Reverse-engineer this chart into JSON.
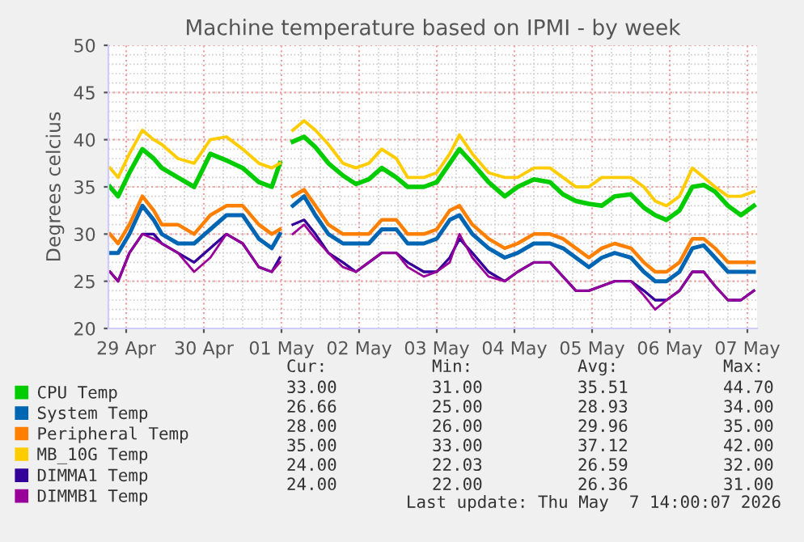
{
  "chart_data": {
    "type": "line",
    "title": "Machine temperature based on IPMI - by week",
    "ylabel": "Degrees celcius",
    "x": [
      "2026-04-28T19:00",
      "2026-04-28T21:30",
      "2026-04-29T01:00",
      "2026-04-29T05:00",
      "2026-04-29T08:30",
      "2026-04-29T11:00",
      "2026-04-29T16:00",
      "2026-04-29T21:00",
      "2026-04-30T02:00",
      "2026-04-30T07:00",
      "2026-04-30T12:00",
      "2026-04-30T17:00",
      "2026-04-30T21:00",
      "2026-04-30T23:30",
      "2026-05-01T01:30",
      "2026-05-01T03:30",
      "2026-05-01T07:00",
      "2026-05-01T10:30",
      "2026-05-01T14:30",
      "2026-05-01T19:00",
      "2026-05-01T23:00",
      "2026-05-02T03:00",
      "2026-05-02T07:00",
      "2026-05-02T11:30",
      "2026-05-02T15:00",
      "2026-05-02T20:00",
      "2026-05-03T00:00",
      "2026-05-03T04:00",
      "2026-05-03T07:00",
      "2026-05-03T11:00",
      "2026-05-03T16:00",
      "2026-05-03T21:00",
      "2026-05-04T01:00",
      "2026-05-04T06:00",
      "2026-05-04T11:00",
      "2026-05-04T15:00",
      "2026-05-04T19:00",
      "2026-05-04T23:00",
      "2026-05-05T03:00",
      "2026-05-05T07:00",
      "2026-05-05T12:00",
      "2026-05-05T16:00",
      "2026-05-05T19:30",
      "2026-05-05T23:00",
      "2026-05-06T03:00",
      "2026-05-06T07:00",
      "2026-05-06T10:30",
      "2026-05-06T14:00",
      "2026-05-06T18:00",
      "2026-05-06T22:00",
      "2026-05-07T02:00"
    ],
    "series": [
      {
        "name": "CPU Temp",
        "color": "#00cc00",
        "values": [
          35,
          34,
          36.5,
          39,
          38,
          37,
          36,
          35,
          38.5,
          37.8,
          37,
          35.5,
          35,
          37.5,
          null,
          39.8,
          40.3,
          39.2,
          37.5,
          36.2,
          35.3,
          35.8,
          37,
          36,
          35,
          35,
          35.5,
          37.5,
          39,
          37.5,
          35.5,
          34,
          35,
          35.8,
          35.5,
          34.2,
          33.5,
          33.2,
          33,
          34,
          34.2,
          32.8,
          32,
          31.5,
          32.5,
          35,
          35.2,
          34.5,
          33,
          32,
          33
        ]
      },
      {
        "name": "System Temp",
        "color": "#0066b3",
        "values": [
          28,
          28,
          30,
          33,
          31.5,
          30,
          29,
          29,
          30.5,
          32,
          32,
          29.5,
          28.5,
          30,
          null,
          33,
          34,
          32,
          30,
          29,
          29,
          29,
          30.5,
          30.5,
          29,
          29,
          29.5,
          31.5,
          32,
          30,
          28.5,
          27.5,
          28,
          29,
          29,
          28.5,
          27.5,
          26.5,
          27.5,
          28,
          27.5,
          26,
          25,
          25,
          26,
          28.5,
          28.8,
          27.5,
          26,
          26,
          26
        ]
      },
      {
        "name": "Peripheral Temp",
        "color": "#ff8000",
        "values": [
          30,
          29,
          31,
          34,
          32.5,
          31,
          31,
          30,
          32,
          33,
          33,
          31,
          30,
          30.5,
          null,
          34,
          34.7,
          33,
          31,
          30,
          30,
          30,
          31.5,
          31.5,
          30,
          30,
          30.5,
          32.5,
          33,
          31,
          29.5,
          28.5,
          29,
          30,
          30,
          29.5,
          28.5,
          27.5,
          28.5,
          29,
          28.5,
          27,
          26,
          26,
          27,
          29.5,
          29.5,
          28.5,
          27,
          27,
          27
        ]
      },
      {
        "name": "MB_10G Temp",
        "color": "#ffcc00",
        "values": [
          37,
          36,
          38.5,
          41,
          40,
          39.5,
          38,
          37.5,
          40,
          40.3,
          39,
          37.5,
          37,
          37.5,
          null,
          41,
          42,
          41,
          39.5,
          37.5,
          37,
          37.5,
          39,
          38,
          36,
          36,
          36.5,
          38.5,
          40.5,
          38.5,
          36.5,
          36,
          36,
          37,
          37,
          36,
          35,
          35,
          36,
          36,
          36,
          35,
          33.5,
          33,
          34,
          37,
          36,
          35,
          34,
          34,
          34.5
        ]
      },
      {
        "name": "DIMMA1 Temp",
        "color": "#330099",
        "values": [
          26,
          25,
          28,
          30,
          30,
          29,
          28,
          27,
          28.5,
          30,
          29,
          26.5,
          26,
          27.5,
          null,
          31,
          31.5,
          30,
          28,
          27,
          26,
          27,
          28,
          28,
          27,
          26,
          26,
          27.5,
          29.5,
          28,
          26,
          25,
          26,
          27,
          27,
          25.5,
          24,
          24,
          24.5,
          25,
          25,
          24,
          23,
          23,
          24,
          26,
          26,
          24.5,
          23,
          23,
          24
        ]
      },
      {
        "name": "DIMMB1 Temp",
        "color": "#990099",
        "values": [
          26,
          25,
          28,
          30,
          29.5,
          29,
          28,
          26,
          27.5,
          30,
          29,
          26.5,
          26,
          27,
          null,
          30,
          31,
          29.5,
          28,
          26.5,
          26,
          27,
          28,
          28,
          26.5,
          25.5,
          26,
          27,
          30,
          27.5,
          25.5,
          25,
          26,
          27,
          27,
          25.5,
          24,
          24,
          24.5,
          25,
          25,
          23.5,
          22,
          23,
          24,
          26,
          26,
          24.5,
          23,
          23,
          24
        ]
      }
    ],
    "xlim": [
      "2026-04-28T18:30",
      "2026-05-07T03:00"
    ],
    "xticks": [
      {
        "value": "2026-04-29",
        "label": "29 Apr"
      },
      {
        "value": "2026-04-30",
        "label": "30 Apr"
      },
      {
        "value": "2026-05-01",
        "label": "01 May"
      },
      {
        "value": "2026-05-02",
        "label": "02 May"
      },
      {
        "value": "2026-05-03",
        "label": "03 May"
      },
      {
        "value": "2026-05-04",
        "label": "04 May"
      },
      {
        "value": "2026-05-05",
        "label": "05 May"
      },
      {
        "value": "2026-05-06",
        "label": "06 May"
      },
      {
        "value": "2026-05-07",
        "label": "07 May"
      }
    ],
    "ylim": [
      20,
      50
    ],
    "yticks": [
      20,
      25,
      30,
      35,
      40,
      45,
      50
    ],
    "grid": true,
    "legend": "bottom",
    "marker": "none",
    "line_style": "solid",
    "annotations": [
      "Cur:",
      "Min:",
      "Avg:",
      "Max:",
      "33.00",
      "31.00",
      "35.51",
      "44.70",
      "26.66",
      "25.00",
      "28.93",
      "34.00",
      "28.00",
      "26.00",
      "29.96",
      "35.00",
      "35.00",
      "33.00",
      "37.12",
      "42.00",
      "24.00",
      "22.03",
      "26.59",
      "32.00",
      "24.00",
      "22.00",
      "26.36",
      "31.00",
      "Last update: Thu May  7 14:00:07 2026"
    ]
  }
}
